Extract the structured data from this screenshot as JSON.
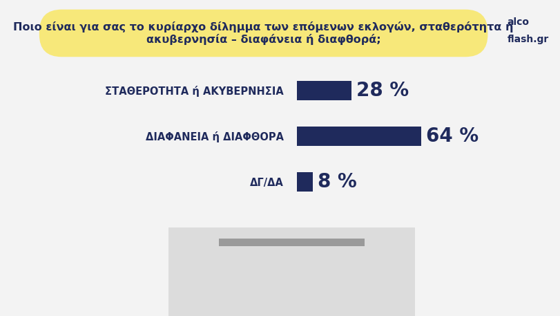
{
  "chart_data": {
    "type": "bar",
    "title": "Ποιο είναι για σας το κυρίαρχο δίλημμα των επόμενων εκλογών, σταθερότητα ή ακυβερνησία – διαφάνεια ή διαφθορά;",
    "categories": [
      "ΣΤΑΘΕΡΟΤΗΤΑ ή ΑΚΥΒΕΡΝΗΣΙΑ",
      "ΔΙΑΦΑΝΕΙΑ ή ΔΙΑΦΘΟΡΑ",
      "ΔΓ/ΔΑ"
    ],
    "values": [
      28,
      64,
      8
    ],
    "value_labels": [
      "28 %",
      "64 %",
      "8 %"
    ],
    "color": "#1f2a5c",
    "orientation": "horizontal",
    "data_labels": true,
    "tick_labels": "y",
    "grid": false,
    "annotations": [
      "alco",
      "flash.gr"
    ]
  }
}
